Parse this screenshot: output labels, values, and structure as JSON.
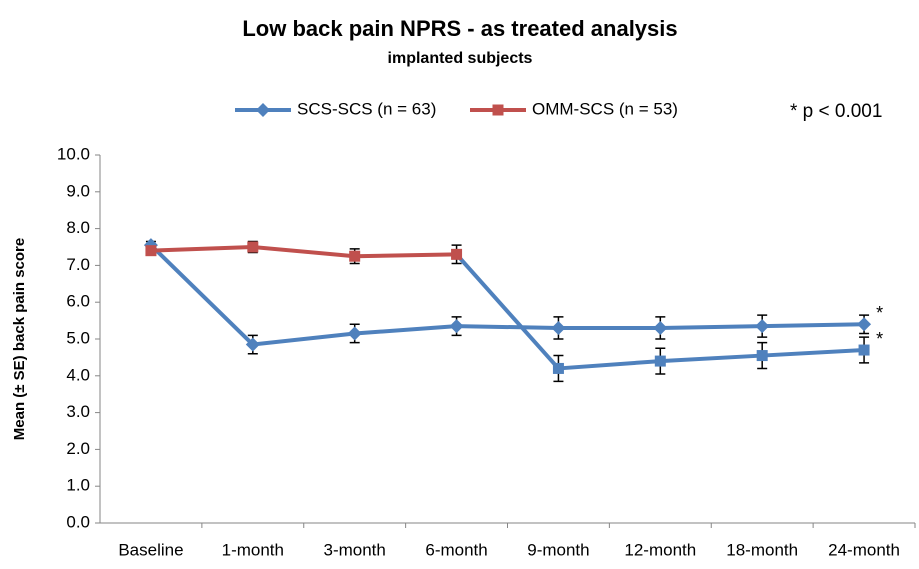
{
  "chart_data": {
    "type": "line",
    "title": "Low back pain NPRS - as treated analysis",
    "subtitle": "implanted subjects",
    "y_label": "Mean (± SE) back pain score",
    "note": "* p < 0.001",
    "categories": [
      "Baseline",
      "1-month",
      "3-month",
      "6-month",
      "9-month",
      "12-month",
      "18-month",
      "24-month"
    ],
    "series": [
      {
        "name": "SCS-SCS (n = 63)",
        "color": "#4f81bd",
        "marker": "diamond",
        "values": [
          7.55,
          4.85,
          5.15,
          5.35,
          5.3,
          5.3,
          5.35,
          5.4
        ],
        "errors": [
          0.1,
          0.25,
          0.25,
          0.25,
          0.3,
          0.3,
          0.3,
          0.25
        ],
        "point_colors": [
          "#4f81bd",
          "#4f81bd",
          "#4f81bd",
          "#4f81bd",
          "#4f81bd",
          "#4f81bd",
          "#4f81bd",
          "#4f81bd"
        ],
        "annotation": "*"
      },
      {
        "name": "OMM-SCS (n = 53)",
        "color": "#c0504d",
        "marker": "square",
        "values": [
          7.4,
          7.5,
          7.25,
          7.3,
          4.2,
          4.4,
          4.55,
          4.7
        ],
        "errors": [
          0.1,
          0.15,
          0.2,
          0.25,
          0.35,
          0.35,
          0.35,
          0.35
        ],
        "point_colors": [
          "#c0504d",
          "#c0504d",
          "#c0504d",
          "#c0504d",
          "#4f81bd",
          "#4f81bd",
          "#4f81bd",
          "#4f81bd"
        ],
        "annotation": "*"
      }
    ],
    "ylim": [
      0,
      10
    ],
    "yticks": [
      {
        "value": 0,
        "label": "0.0"
      },
      {
        "value": 1,
        "label": "1.0"
      },
      {
        "value": 2,
        "label": "2.0"
      },
      {
        "value": 3,
        "label": "3.0"
      },
      {
        "value": 4,
        "label": "4.0"
      },
      {
        "value": 5,
        "label": "5.0"
      },
      {
        "value": 6,
        "label": "6.0"
      },
      {
        "value": 7,
        "label": "7.0"
      },
      {
        "value": 8,
        "label": "8.0"
      },
      {
        "value": 9,
        "label": "9.0"
      },
      {
        "value": 10,
        "label": "10.0"
      }
    ],
    "grid": false,
    "legend": "top"
  }
}
